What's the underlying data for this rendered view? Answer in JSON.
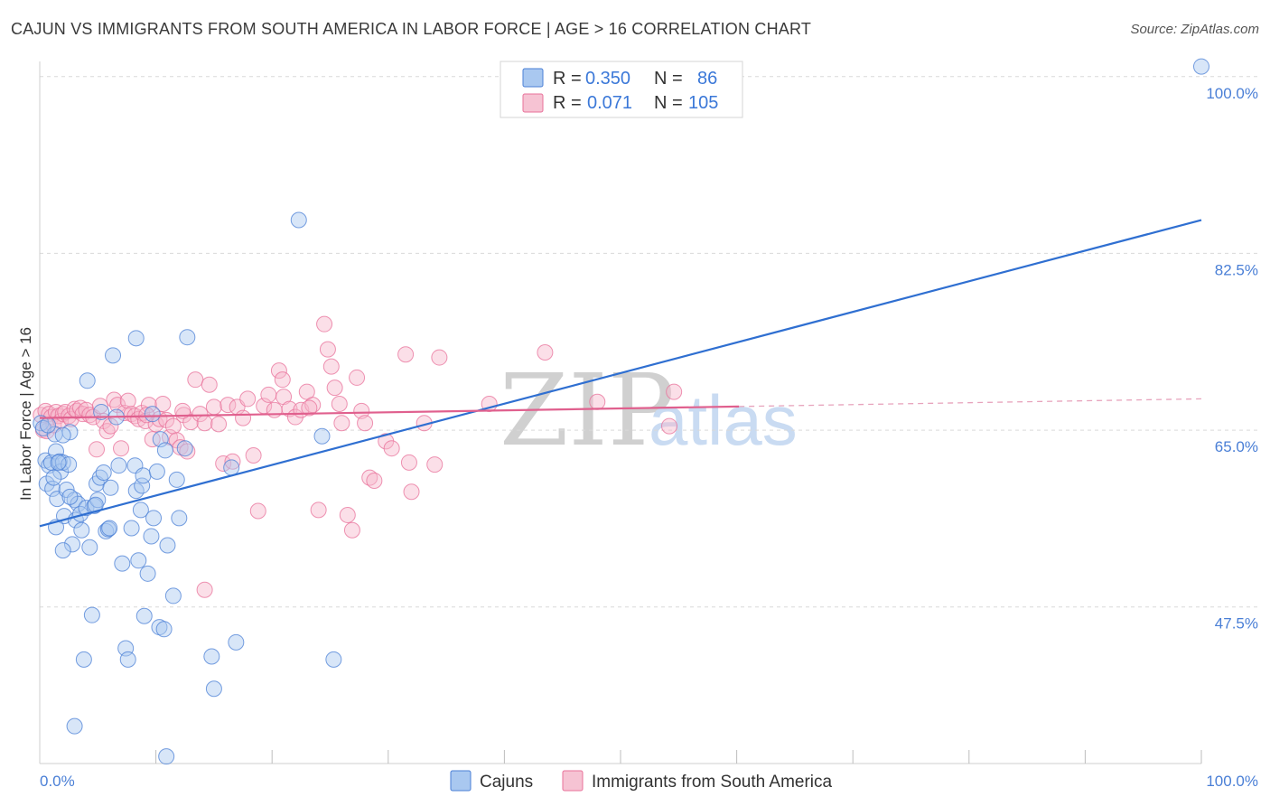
{
  "title": "CAJUN VS IMMIGRANTS FROM SOUTH AMERICA IN LABOR FORCE | AGE > 16 CORRELATION CHART",
  "source": "Source: ZipAtlas.com",
  "watermark": {
    "zip": "ZIP",
    "atlas": "atlas"
  },
  "colors": {
    "blue": "#4a7fd6",
    "blue_fill": "#a9c8f0",
    "pink": "#e8709a",
    "pink_fill": "#f6b8cc",
    "grid": "#d9d9d9"
  },
  "legend": {
    "rows": [
      {
        "r_label": "R =",
        "r_value": "0.350",
        "n_label": "N =",
        "n_value": "86"
      },
      {
        "r_label": "R =",
        "r_value": "0.071",
        "n_label": "N =",
        "n_value": "105"
      }
    ]
  },
  "chart_data": {
    "type": "scatter",
    "title": "CAJUN VS IMMIGRANTS FROM SOUTH AMERICA IN LABOR FORCE | AGE > 16 CORRELATION CHART",
    "xlabel": "",
    "ylabel": "In Labor Force | Age > 16",
    "xlim": [
      0,
      100
    ],
    "ylim": [
      32,
      101.5
    ],
    "x_tick_labels": [
      "0.0%",
      "100.0%"
    ],
    "y_ticks": [
      47.5,
      65.0,
      82.5,
      100.0
    ],
    "y_tick_labels": [
      "47.5%",
      "65.0%",
      "82.5%",
      "100.0%"
    ],
    "legend_position": "bottom-center",
    "series": [
      {
        "name": "Cajuns",
        "trend": {
          "x": [
            0,
            100
          ],
          "y": [
            55.5,
            85.8
          ],
          "dashed_from": null
        },
        "points": [
          [
            0.1,
            65.7
          ],
          [
            0.3,
            65.2
          ],
          [
            0.5,
            62.0
          ],
          [
            0.6,
            59.7
          ],
          [
            0.8,
            61.5
          ],
          [
            1.0,
            61.8
          ],
          [
            1.1,
            59.2
          ],
          [
            1.3,
            64.6
          ],
          [
            1.4,
            62.9
          ],
          [
            1.5,
            58.2
          ],
          [
            1.7,
            61.9
          ],
          [
            1.8,
            60.9
          ],
          [
            2.0,
            61.8
          ],
          [
            2.1,
            56.5
          ],
          [
            2.3,
            59.1
          ],
          [
            2.5,
            61.6
          ],
          [
            2.6,
            64.8
          ],
          [
            2.8,
            53.7
          ],
          [
            3.0,
            58.1
          ],
          [
            3.1,
            56.1
          ],
          [
            3.3,
            57.7
          ],
          [
            3.5,
            56.7
          ],
          [
            3.6,
            55.1
          ],
          [
            3.8,
            42.3
          ],
          [
            4.0,
            57.3
          ],
          [
            4.1,
            69.9
          ],
          [
            4.3,
            53.4
          ],
          [
            4.5,
            46.7
          ],
          [
            4.7,
            57.5
          ],
          [
            4.9,
            59.7
          ],
          [
            5.0,
            58.1
          ],
          [
            5.2,
            60.3
          ],
          [
            5.3,
            66.8
          ],
          [
            5.5,
            60.8
          ],
          [
            5.7,
            55.0
          ],
          [
            5.9,
            55.2
          ],
          [
            6.1,
            59.3
          ],
          [
            6.3,
            72.4
          ],
          [
            6.6,
            66.3
          ],
          [
            6.8,
            61.5
          ],
          [
            7.1,
            51.8
          ],
          [
            7.4,
            43.4
          ],
          [
            7.6,
            42.3
          ],
          [
            7.9,
            55.3
          ],
          [
            8.2,
            61.5
          ],
          [
            8.3,
            59.0
          ],
          [
            8.5,
            52.1
          ],
          [
            8.7,
            57.1
          ],
          [
            8.8,
            59.5
          ],
          [
            8.9,
            60.5
          ],
          [
            9.0,
            46.6
          ],
          [
            9.3,
            50.8
          ],
          [
            9.6,
            54.5
          ],
          [
            9.8,
            56.3
          ],
          [
            10.1,
            60.9
          ],
          [
            10.3,
            45.5
          ],
          [
            10.4,
            64.1
          ],
          [
            10.7,
            45.3
          ],
          [
            11.0,
            53.6
          ],
          [
            11.5,
            48.6
          ],
          [
            12.0,
            56.3
          ],
          [
            12.5,
            63.2
          ],
          [
            14.8,
            42.6
          ],
          [
            15.0,
            39.4
          ],
          [
            16.5,
            61.3
          ],
          [
            16.9,
            44.0
          ],
          [
            22.3,
            85.8
          ],
          [
            24.3,
            64.4
          ],
          [
            25.3,
            42.3
          ],
          [
            10.9,
            32.7
          ],
          [
            1.4,
            55.4
          ],
          [
            2.0,
            53.1
          ],
          [
            0.7,
            65.5
          ],
          [
            1.2,
            60.3
          ],
          [
            3.0,
            35.7
          ],
          [
            8.3,
            74.1
          ],
          [
            12.7,
            74.2
          ],
          [
            11.8,
            60.1
          ],
          [
            10.8,
            63.0
          ],
          [
            9.7,
            66.6
          ],
          [
            6.0,
            55.3
          ],
          [
            4.8,
            57.6
          ],
          [
            2.6,
            58.4
          ],
          [
            2.0,
            64.5
          ],
          [
            1.6,
            61.8
          ],
          [
            100.0,
            101.0
          ]
        ]
      },
      {
        "name": "Immigrants from South America",
        "trend": {
          "x": [
            0,
            100
          ],
          "y": [
            66.2,
            68.1
          ],
          "dashed_from": 60.2
        },
        "points": [
          [
            0.1,
            66.5
          ],
          [
            0.3,
            65.0
          ],
          [
            0.5,
            66.9
          ],
          [
            0.6,
            64.9
          ],
          [
            0.8,
            66.6
          ],
          [
            1.0,
            66.3
          ],
          [
            1.2,
            65.5
          ],
          [
            1.4,
            66.8
          ],
          [
            1.6,
            66.4
          ],
          [
            1.8,
            65.9
          ],
          [
            2.0,
            66.6
          ],
          [
            2.2,
            66.8
          ],
          [
            2.5,
            66.4
          ],
          [
            2.7,
            66.1
          ],
          [
            3.0,
            67.1
          ],
          [
            3.2,
            66.9
          ],
          [
            3.5,
            67.2
          ],
          [
            3.7,
            66.6
          ],
          [
            4.0,
            67.0
          ],
          [
            4.3,
            66.5
          ],
          [
            4.6,
            66.3
          ],
          [
            4.9,
            63.1
          ],
          [
            5.2,
            67.4
          ],
          [
            5.5,
            65.9
          ],
          [
            5.8,
            64.9
          ],
          [
            6.1,
            65.4
          ],
          [
            6.4,
            68.0
          ],
          [
            6.7,
            67.5
          ],
          [
            7.0,
            63.2
          ],
          [
            7.3,
            66.7
          ],
          [
            7.6,
            67.9
          ],
          [
            7.9,
            66.6
          ],
          [
            8.2,
            66.4
          ],
          [
            8.5,
            66.1
          ],
          [
            8.8,
            66.7
          ],
          [
            9.1,
            65.9
          ],
          [
            9.4,
            67.5
          ],
          [
            9.7,
            64.1
          ],
          [
            10.0,
            65.6
          ],
          [
            10.3,
            66.1
          ],
          [
            10.6,
            67.6
          ],
          [
            10.9,
            66.0
          ],
          [
            11.2,
            64.3
          ],
          [
            11.5,
            65.4
          ],
          [
            11.8,
            64.0
          ],
          [
            12.1,
            63.3
          ],
          [
            12.4,
            66.5
          ],
          [
            12.7,
            62.9
          ],
          [
            13.0,
            65.8
          ],
          [
            13.4,
            70.0
          ],
          [
            13.8,
            66.6
          ],
          [
            14.2,
            65.7
          ],
          [
            14.6,
            69.5
          ],
          [
            15.0,
            67.3
          ],
          [
            15.4,
            65.6
          ],
          [
            15.8,
            61.7
          ],
          [
            16.2,
            67.5
          ],
          [
            16.6,
            61.9
          ],
          [
            17.0,
            67.3
          ],
          [
            17.5,
            66.2
          ],
          [
            17.9,
            68.1
          ],
          [
            18.4,
            62.5
          ],
          [
            18.8,
            57.0
          ],
          [
            19.3,
            67.4
          ],
          [
            19.7,
            68.5
          ],
          [
            20.2,
            67.0
          ],
          [
            20.6,
            70.9
          ],
          [
            21.0,
            68.3
          ],
          [
            21.5,
            67.1
          ],
          [
            22.0,
            66.3
          ],
          [
            22.5,
            67.0
          ],
          [
            23.0,
            68.8
          ],
          [
            23.5,
            67.5
          ],
          [
            24.0,
            57.1
          ],
          [
            24.5,
            75.5
          ],
          [
            24.8,
            73.0
          ],
          [
            25.1,
            71.3
          ],
          [
            25.4,
            69.2
          ],
          [
            26.0,
            65.7
          ],
          [
            26.5,
            56.6
          ],
          [
            26.9,
            55.1
          ],
          [
            27.3,
            70.2
          ],
          [
            27.7,
            66.9
          ],
          [
            28.0,
            65.7
          ],
          [
            28.4,
            60.3
          ],
          [
            28.8,
            60.0
          ],
          [
            29.8,
            63.9
          ],
          [
            30.3,
            63.2
          ],
          [
            31.5,
            72.5
          ],
          [
            31.8,
            61.8
          ],
          [
            32.0,
            58.9
          ],
          [
            33.1,
            65.7
          ],
          [
            34.0,
            61.6
          ],
          [
            34.4,
            72.2
          ],
          [
            38.7,
            67.6
          ],
          [
            43.5,
            72.7
          ],
          [
            48.0,
            67.8
          ],
          [
            54.2,
            65.4
          ],
          [
            54.6,
            68.8
          ],
          [
            14.2,
            49.2
          ],
          [
            9.2,
            66.5
          ],
          [
            12.3,
            66.9
          ],
          [
            20.9,
            70.0
          ],
          [
            23.2,
            67.2
          ],
          [
            25.8,
            67.6
          ]
        ]
      }
    ]
  },
  "bottom_legend": {
    "items": [
      "Cajuns",
      "Immigrants from South America"
    ]
  }
}
